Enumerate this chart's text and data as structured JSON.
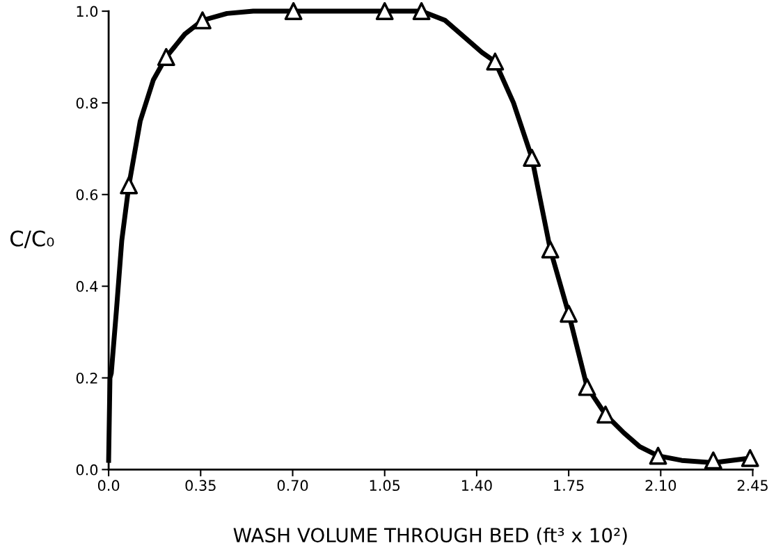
{
  "chart_data": {
    "type": "line",
    "xlabel": "WASH VOLUME THROUGH BED (ft³ x 10²)",
    "ylabel": "C/C₀",
    "xlim": [
      0,
      2.45
    ],
    "ylim": [
      0,
      1.0
    ],
    "xticks": [
      {
        "value": 0,
        "label": "0.0"
      },
      {
        "value": 0.35,
        "label": "0.35"
      },
      {
        "value": 0.7,
        "label": "0.70"
      },
      {
        "value": 1.05,
        "label": "1.05"
      },
      {
        "value": 1.4,
        "label": "1.40"
      },
      {
        "value": 1.75,
        "label": "1.75"
      },
      {
        "value": 2.1,
        "label": "2.10"
      },
      {
        "value": 2.45,
        "label": "2.45"
      }
    ],
    "yticks": [
      {
        "value": 0,
        "label": "0.0"
      },
      {
        "value": 0.2,
        "label": "0.2"
      },
      {
        "value": 0.4,
        "label": "0.4"
      },
      {
        "value": 0.6,
        "label": "0.6"
      },
      {
        "value": 0.8,
        "label": "0.8"
      },
      {
        "value": 1.0,
        "label": "1.0"
      }
    ],
    "grid": false,
    "legend": false,
    "series": [
      {
        "color": "#000000",
        "marker": "none",
        "line_style": "solid",
        "x": [
          0,
          0.005,
          0.01,
          0.03,
          0.05,
          0.077,
          0.12,
          0.17,
          0.219,
          0.29,
          0.357,
          0.45,
          0.55,
          0.703,
          1.05,
          1.19,
          1.28,
          1.36,
          1.42,
          1.47,
          1.54,
          1.61,
          1.68,
          1.75,
          1.82,
          1.89,
          1.96,
          2.02,
          2.09,
          2.18,
          2.3,
          2.44
        ],
        "values": [
          0.02,
          0.2,
          0.21,
          0.35,
          0.5,
          0.62,
          0.76,
          0.85,
          0.9,
          0.95,
          0.98,
          0.995,
          1.0,
          1.0,
          1.0,
          1.0,
          0.98,
          0.94,
          0.91,
          0.89,
          0.8,
          0.68,
          0.48,
          0.34,
          0.18,
          0.12,
          0.08,
          0.05,
          0.03,
          0.02,
          0.015,
          0.025
        ]
      },
      {
        "type": "scatter",
        "color": "#000000",
        "marker": "triangle",
        "x": [
          0.077,
          0.219,
          0.357,
          0.703,
          1.05,
          1.19,
          1.47,
          1.61,
          1.68,
          1.75,
          1.82,
          1.89,
          2.09,
          2.3,
          2.44
        ],
        "values": [
          0.62,
          0.9,
          0.98,
          1.0,
          1.0,
          1.0,
          0.89,
          0.68,
          0.48,
          0.34,
          0.18,
          0.12,
          0.03,
          0.02,
          0.025
        ]
      }
    ]
  }
}
